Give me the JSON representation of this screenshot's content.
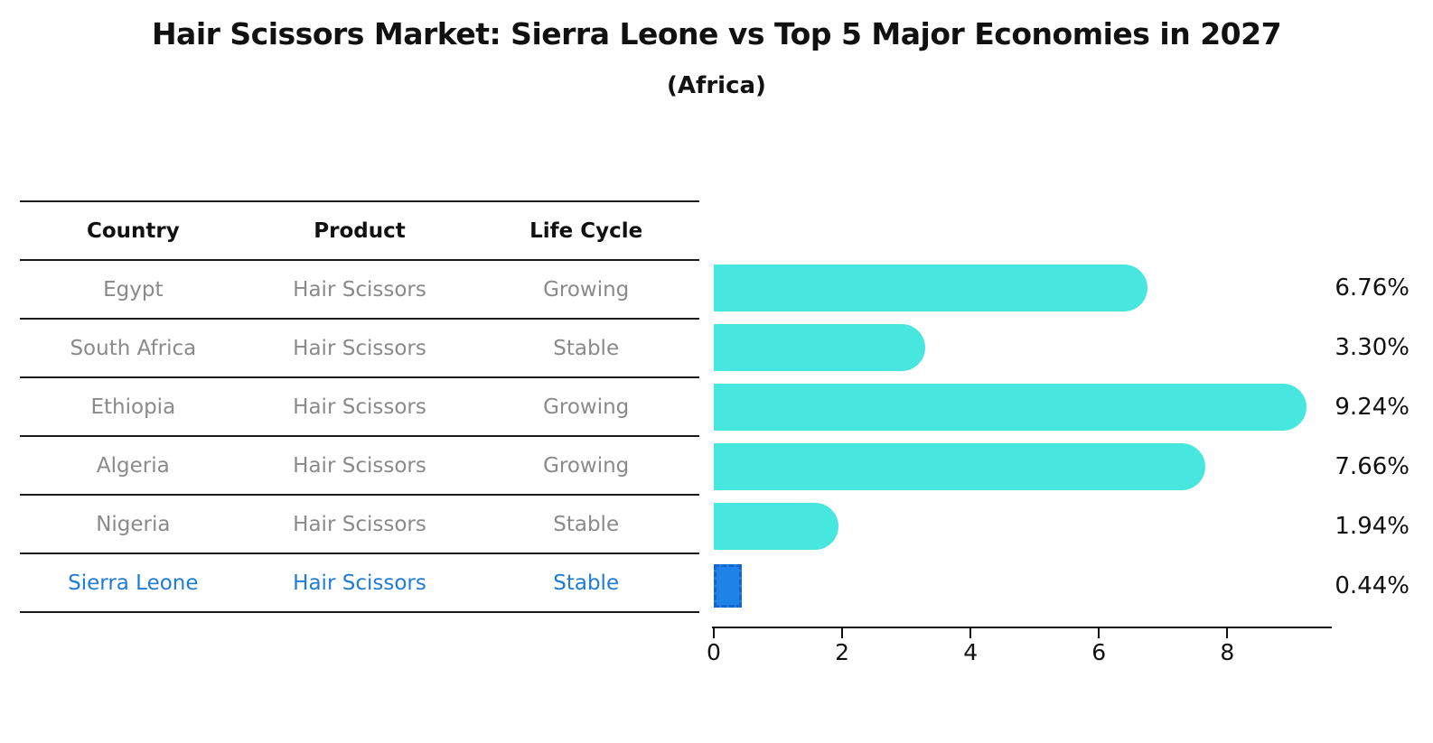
{
  "title": "Hair Scissors Market: Sierra Leone vs Top 5 Major Economies in 2027",
  "subtitle": "(Africa)",
  "table": {
    "headers": [
      "Country",
      "Product",
      "Life Cycle"
    ],
    "rows": [
      {
        "country": "Egypt",
        "product": "Hair Scissors",
        "life_cycle": "Growing",
        "highlight": false
      },
      {
        "country": "South Africa",
        "product": "Hair Scissors",
        "life_cycle": "Stable",
        "highlight": false
      },
      {
        "country": "Ethiopia",
        "product": "Hair Scissors",
        "life_cycle": "Growing",
        "highlight": false
      },
      {
        "country": "Algeria",
        "product": "Hair Scissors",
        "life_cycle": "Growing",
        "highlight": false
      },
      {
        "country": "Nigeria",
        "product": "Hair Scissors",
        "life_cycle": "Stable",
        "highlight": false
      },
      {
        "country": "Sierra Leone",
        "product": "Hair Scissors",
        "life_cycle": "Stable",
        "highlight": true
      }
    ]
  },
  "chart_data": {
    "type": "bar",
    "orientation": "horizontal",
    "title": "Hair Scissors Market: Sierra Leone vs Top 5 Major Economies in 2027 (Africa)",
    "categories": [
      "Egypt",
      "South Africa",
      "Ethiopia",
      "Algeria",
      "Nigeria",
      "Sierra Leone"
    ],
    "values": [
      6.76,
      3.3,
      9.24,
      7.66,
      1.94,
      0.44
    ],
    "value_labels": [
      "6.76%",
      "3.30%",
      "9.24%",
      "7.66%",
      "1.94%",
      "0.44%"
    ],
    "highlight_category": "Sierra Leone",
    "xlim": [
      0,
      9.6
    ],
    "xticks": [
      0,
      2,
      4,
      6,
      8
    ],
    "grid": false,
    "legend": "none",
    "colors": {
      "bar": "#47e7e0",
      "highlight_bar_fill": "#1e82e8",
      "highlight_bar_border": "#1565d1",
      "axis": "#111111",
      "value_label_text": "#111111",
      "table_text": "#8a8a8a",
      "table_header_text": "#111111",
      "highlight_row_text": "#1e7cd6"
    }
  }
}
